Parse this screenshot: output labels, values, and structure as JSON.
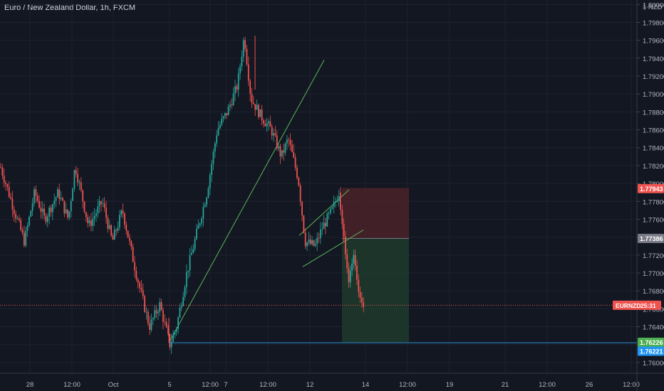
{
  "header": {
    "title": "Euro / New Zealand Dollar, 1h, FXCM"
  },
  "chart_data": {
    "type": "candlestick",
    "symbol": "EURNZD",
    "currency_label": "NZD",
    "ylim": [
      1.7588,
      1.8005
    ],
    "y_ticks": [
      "1.80000",
      "1.79800",
      "1.79600",
      "1.79400",
      "1.79200",
      "1.79000",
      "1.78800",
      "1.78600",
      "1.78400",
      "1.78200",
      "1.78000",
      "1.77800",
      "1.77600",
      "1.77400",
      "1.77200",
      "1.77000",
      "1.76800",
      "1.76600",
      "1.76400",
      "1.76200",
      "1.76000"
    ],
    "x_ticks": [
      "28",
      "12:00",
      "Oct",
      "5",
      "12:00",
      "7",
      "12:00",
      "12",
      "14",
      "12:00",
      "19",
      "21",
      "12:00",
      "26",
      "12:00"
    ],
    "price_anchors": [
      [
        "start",
        1.7818
      ],
      [
        0.04,
        1.777
      ],
      [
        0.07,
        1.7735
      ],
      [
        0.1,
        1.779
      ],
      [
        0.13,
        1.776
      ],
      [
        0.17,
        1.779
      ],
      [
        0.2,
        1.776
      ],
      [
        0.22,
        1.782
      ],
      [
        0.26,
        1.7752
      ],
      [
        0.3,
        1.778
      ],
      [
        0.33,
        1.7735
      ],
      [
        0.36,
        1.777
      ],
      [
        0.4,
        1.77
      ],
      [
        0.44,
        1.764
      ],
      [
        0.47,
        1.7665
      ],
      [
        0.5,
        1.762
      ],
      [
        0.52,
        1.764
      ],
      [
        0.55,
        1.77
      ],
      [
        0.58,
        1.7745
      ],
      [
        0.61,
        1.779
      ],
      [
        0.64,
        1.786
      ],
      [
        0.67,
        1.788
      ],
      [
        0.7,
        1.791
      ],
      [
        0.72,
        1.7965
      ],
      [
        0.74,
        1.7895
      ],
      [
        0.77,
        1.7875
      ],
      [
        0.8,
        1.786
      ],
      [
        0.83,
        1.783
      ],
      [
        0.85,
        1.785
      ],
      [
        0.88,
        1.7805
      ],
      [
        0.9,
        1.7735
      ],
      [
        0.93,
        1.773
      ],
      [
        0.95,
        1.775
      ],
      [
        0.98,
        1.777
      ],
      [
        1.0,
        1.779
      ]
    ],
    "last_price_segment": [
      1.779,
      1.774,
      1.769,
      1.772,
      1.768,
      1.7664
    ],
    "price_labels": {
      "entry": "1.77943",
      "stop": "1.77386",
      "current_symbol": "EURNZD",
      "current_time": "25:31",
      "target": "1.76226",
      "support": "1.76221"
    },
    "levels": {
      "entry": 1.77943,
      "stop": 1.77386,
      "current": 1.7664,
      "target": 1.76226,
      "support": 1.76221
    },
    "colors": {
      "up": "#26a69a",
      "down": "#ef5350",
      "grid": "#1e2230",
      "axis_text": "#b2b5be",
      "risk_zone": "#4a2328",
      "reward_zone": "#1e3a2b",
      "trendline": "#5ab55a",
      "support": "#2a8fd6",
      "label_red": "#ef5350",
      "label_grey": "#787b86",
      "label_green": "#4caf50",
      "label_blue": "#2196f3"
    }
  }
}
